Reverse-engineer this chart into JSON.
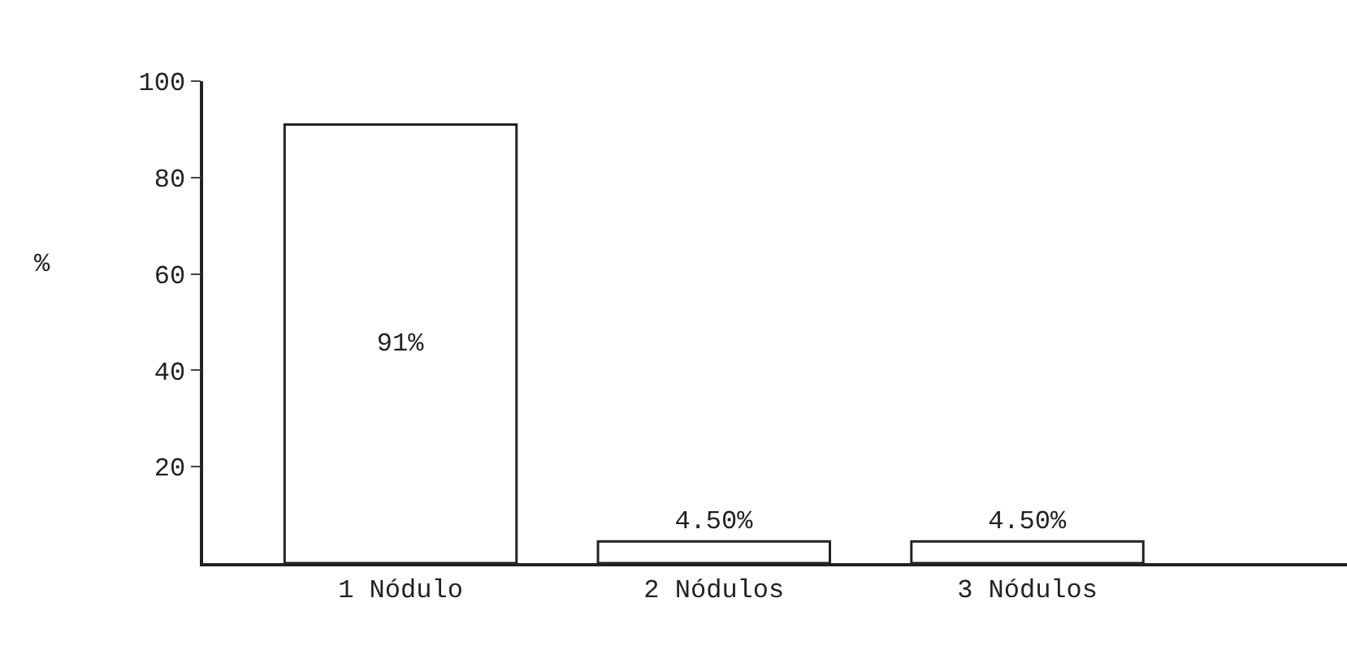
{
  "chart_data": {
    "type": "bar",
    "ylabel": "%",
    "categories": [
      "1 Nódulo",
      "2 Nódulos",
      "3 Nódulos"
    ],
    "values": [
      91,
      4.5,
      4.5
    ],
    "value_labels": [
      "91%",
      "4.50%",
      "4.50%"
    ],
    "color": "#ffffff",
    "ylim": [
      0,
      100
    ],
    "yticks": [
      20,
      40,
      60,
      80,
      100
    ]
  }
}
